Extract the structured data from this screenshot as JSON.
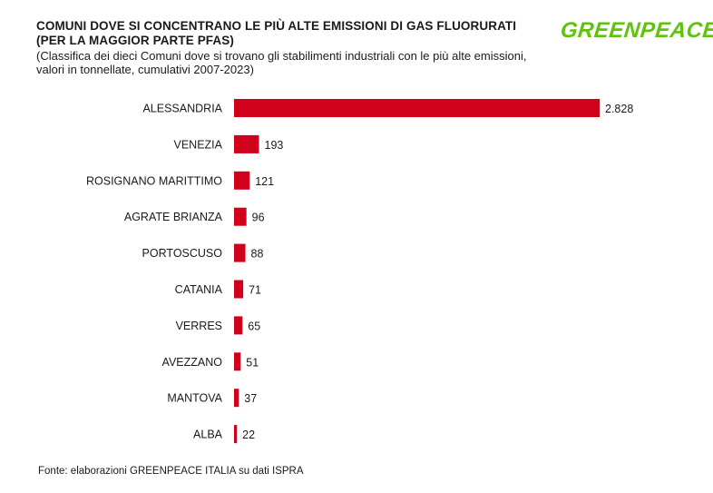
{
  "header": {
    "title": "COMUNI DOVE SI CONCENTRANO LE PIÙ ALTE EMISSIONI DI GAS FLUORURATI (PER LA MAGGIOR PARTE PFAS)",
    "subtitle": "(Classifica dei dieci Comuni dove si trovano gli stabilimenti industriali con le più alte emissioni, valori in tonnellate, cumulativi 2007-2023)",
    "logo_text": "GREENPEACE"
  },
  "footer": {
    "source": "Fonte: elaborazioni GREENPEACE ITALIA su dati ISPRA"
  },
  "colors": {
    "bar": "#d0021b",
    "logo": "#5fc30e"
  },
  "chart_data": {
    "type": "bar",
    "orientation": "horizontal",
    "categories": [
      "ALESSANDRIA",
      "VENEZIA",
      "ROSIGNANO MARITTIMO",
      "AGRATE BRIANZA",
      "PORTOSCUSO",
      "CATANIA",
      "VERRES",
      "AVEZZANO",
      "MANTOVA",
      "ALBA"
    ],
    "values": [
      2828,
      193,
      121,
      96,
      88,
      71,
      65,
      51,
      37,
      22
    ],
    "value_labels": [
      "2.828",
      "193",
      "121",
      "96",
      "88",
      "71",
      "65",
      "51",
      "37",
      "22"
    ],
    "xlim": [
      0,
      2828
    ],
    "grid": false,
    "legend": "none"
  }
}
